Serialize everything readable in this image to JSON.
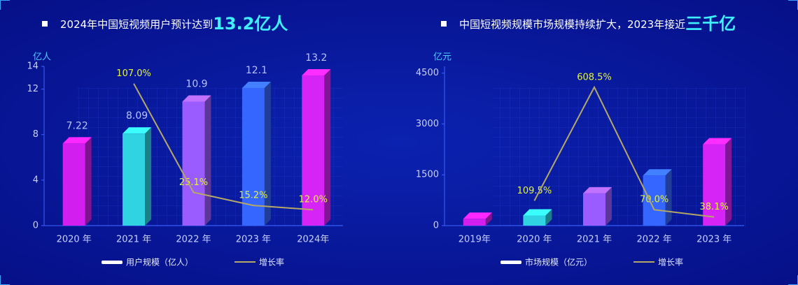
{
  "chart_data": [
    {
      "type": "combo",
      "title": "2024年中国短视频用户预计达到",
      "title_highlight": "13.2亿人",
      "y_label": "亿人",
      "categories": [
        "2020 年",
        "2021 年",
        "2022 年",
        "2023 年",
        "2024年"
      ],
      "ylim": [
        0,
        14
      ],
      "yticks": [
        0,
        4,
        8,
        12,
        14
      ],
      "y2lim": [
        0,
        120
      ],
      "series": [
        {
          "name": "用户规模（亿人）",
          "type": "bar",
          "color": "#ffffff",
          "colors": [
            "#d21ff0",
            "#2fd3e2",
            "#9a5cff",
            "#3566ff",
            "#d624f6"
          ],
          "values": [
            7.22,
            8.09,
            10.9,
            12.1,
            13.2
          ]
        },
        {
          "name": "增长率",
          "type": "line",
          "axis": "y2",
          "color": "#b5a866",
          "values": [
            null,
            107.0,
            25.1,
            15.2,
            12.0
          ],
          "value_labels": [
            null,
            "107.0%",
            "25.1%",
            "15.2%",
            "12.0%"
          ]
        }
      ]
    },
    {
      "type": "combo",
      "title": "中国短视频规模市场规模持续扩大，2023年接近",
      "title_highlight": "三千亿",
      "y_label": "亿元",
      "categories": [
        "2019年",
        "2020 年",
        "2021 年",
        "2022 年",
        "2023 年"
      ],
      "ylim": [
        0,
        4700
      ],
      "yticks": [
        0,
        1500,
        3000,
        4500
      ],
      "y2lim": [
        0,
        700
      ],
      "series": [
        {
          "name": "市场规模（亿元）",
          "type": "bar",
          "color": "#ffffff",
          "colors": [
            "#d21ff0",
            "#2fd3e2",
            "#9a5cff",
            "#3566ff",
            "#d624f6"
          ],
          "values": [
            200,
            300,
            950,
            1480,
            2400
          ]
        },
        {
          "name": "增长率",
          "type": "line",
          "axis": "y2",
          "color": "#b5a866",
          "values": [
            null,
            109.5,
            608.5,
            70.0,
            38.1
          ],
          "value_labels": [
            null,
            "109.5%",
            "608.5%",
            "70.0%",
            "38.1%"
          ]
        }
      ]
    }
  ]
}
